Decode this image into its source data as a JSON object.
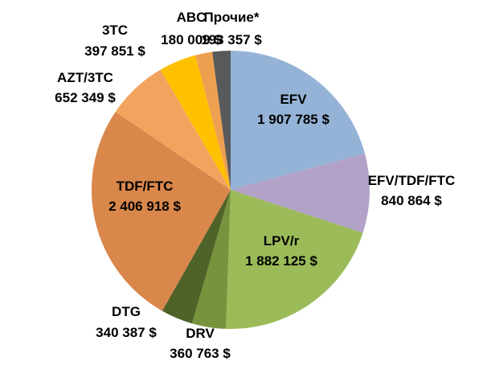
{
  "chart": {
    "background_color": "#FFFFFF",
    "text_color": "#000000"
  },
  "chart_data": {
    "type": "pie",
    "title": "",
    "legend": "none",
    "direction": "clockwise",
    "start_angle_deg": 0,
    "value_unit": "$",
    "thousands_separator": " ",
    "total": 9162408,
    "categories": [
      "EFV",
      "EFV/TDF/FTC",
      "LPV/r",
      "DRV",
      "DTG",
      "TDF/FTC",
      "AZT/3TC",
      "3TC",
      "ABC",
      "Прочие*"
    ],
    "values": [
      1907785,
      840864,
      1882125,
      360763,
      340387,
      2406918,
      652349,
      397851,
      180009,
      193357
    ],
    "slices": [
      {
        "name": "EFV",
        "value": 1907785,
        "display_value": "1 907 785 $",
        "color": "#95B3D7",
        "label_position": "inside"
      },
      {
        "name": "EFV/TDF/FTC",
        "value": 840864,
        "display_value": "840 864 $",
        "color": "#B2A2C7",
        "label_position": "outside-right"
      },
      {
        "name": "LPV/r",
        "value": 1882125,
        "display_value": "1 882 125 $",
        "color": "#9BBB59",
        "label_position": "inside"
      },
      {
        "name": "DRV",
        "value": 360763,
        "display_value": "360 763 $",
        "color": "#77933C",
        "label_position": "outside-bottom"
      },
      {
        "name": "DTG",
        "value": 340387,
        "display_value": "340 387 $",
        "color": "#4F6228",
        "label_position": "outside-bottom-left"
      },
      {
        "name": "TDF/FTC",
        "value": 2406918,
        "display_value": "2 406 918 $",
        "color": "#D9874B",
        "label_position": "inside"
      },
      {
        "name": "AZT/3TC",
        "value": 652349,
        "display_value": "652 349 $",
        "color": "#F2A45F",
        "label_position": "outside-upper-left"
      },
      {
        "name": "3TC",
        "value": 397851,
        "display_value": "397 851 $",
        "color": "#FFC000",
        "label_position": "outside-top-left"
      },
      {
        "name": "ABC",
        "value": 180009,
        "display_value": "180 009 $",
        "color": "#EDA04F",
        "label_position": "outside-top"
      },
      {
        "name": "Прочие*",
        "value": 193357,
        "display_value": "193 357 $",
        "color": "#58595B",
        "label_position": "outside-top"
      }
    ]
  }
}
